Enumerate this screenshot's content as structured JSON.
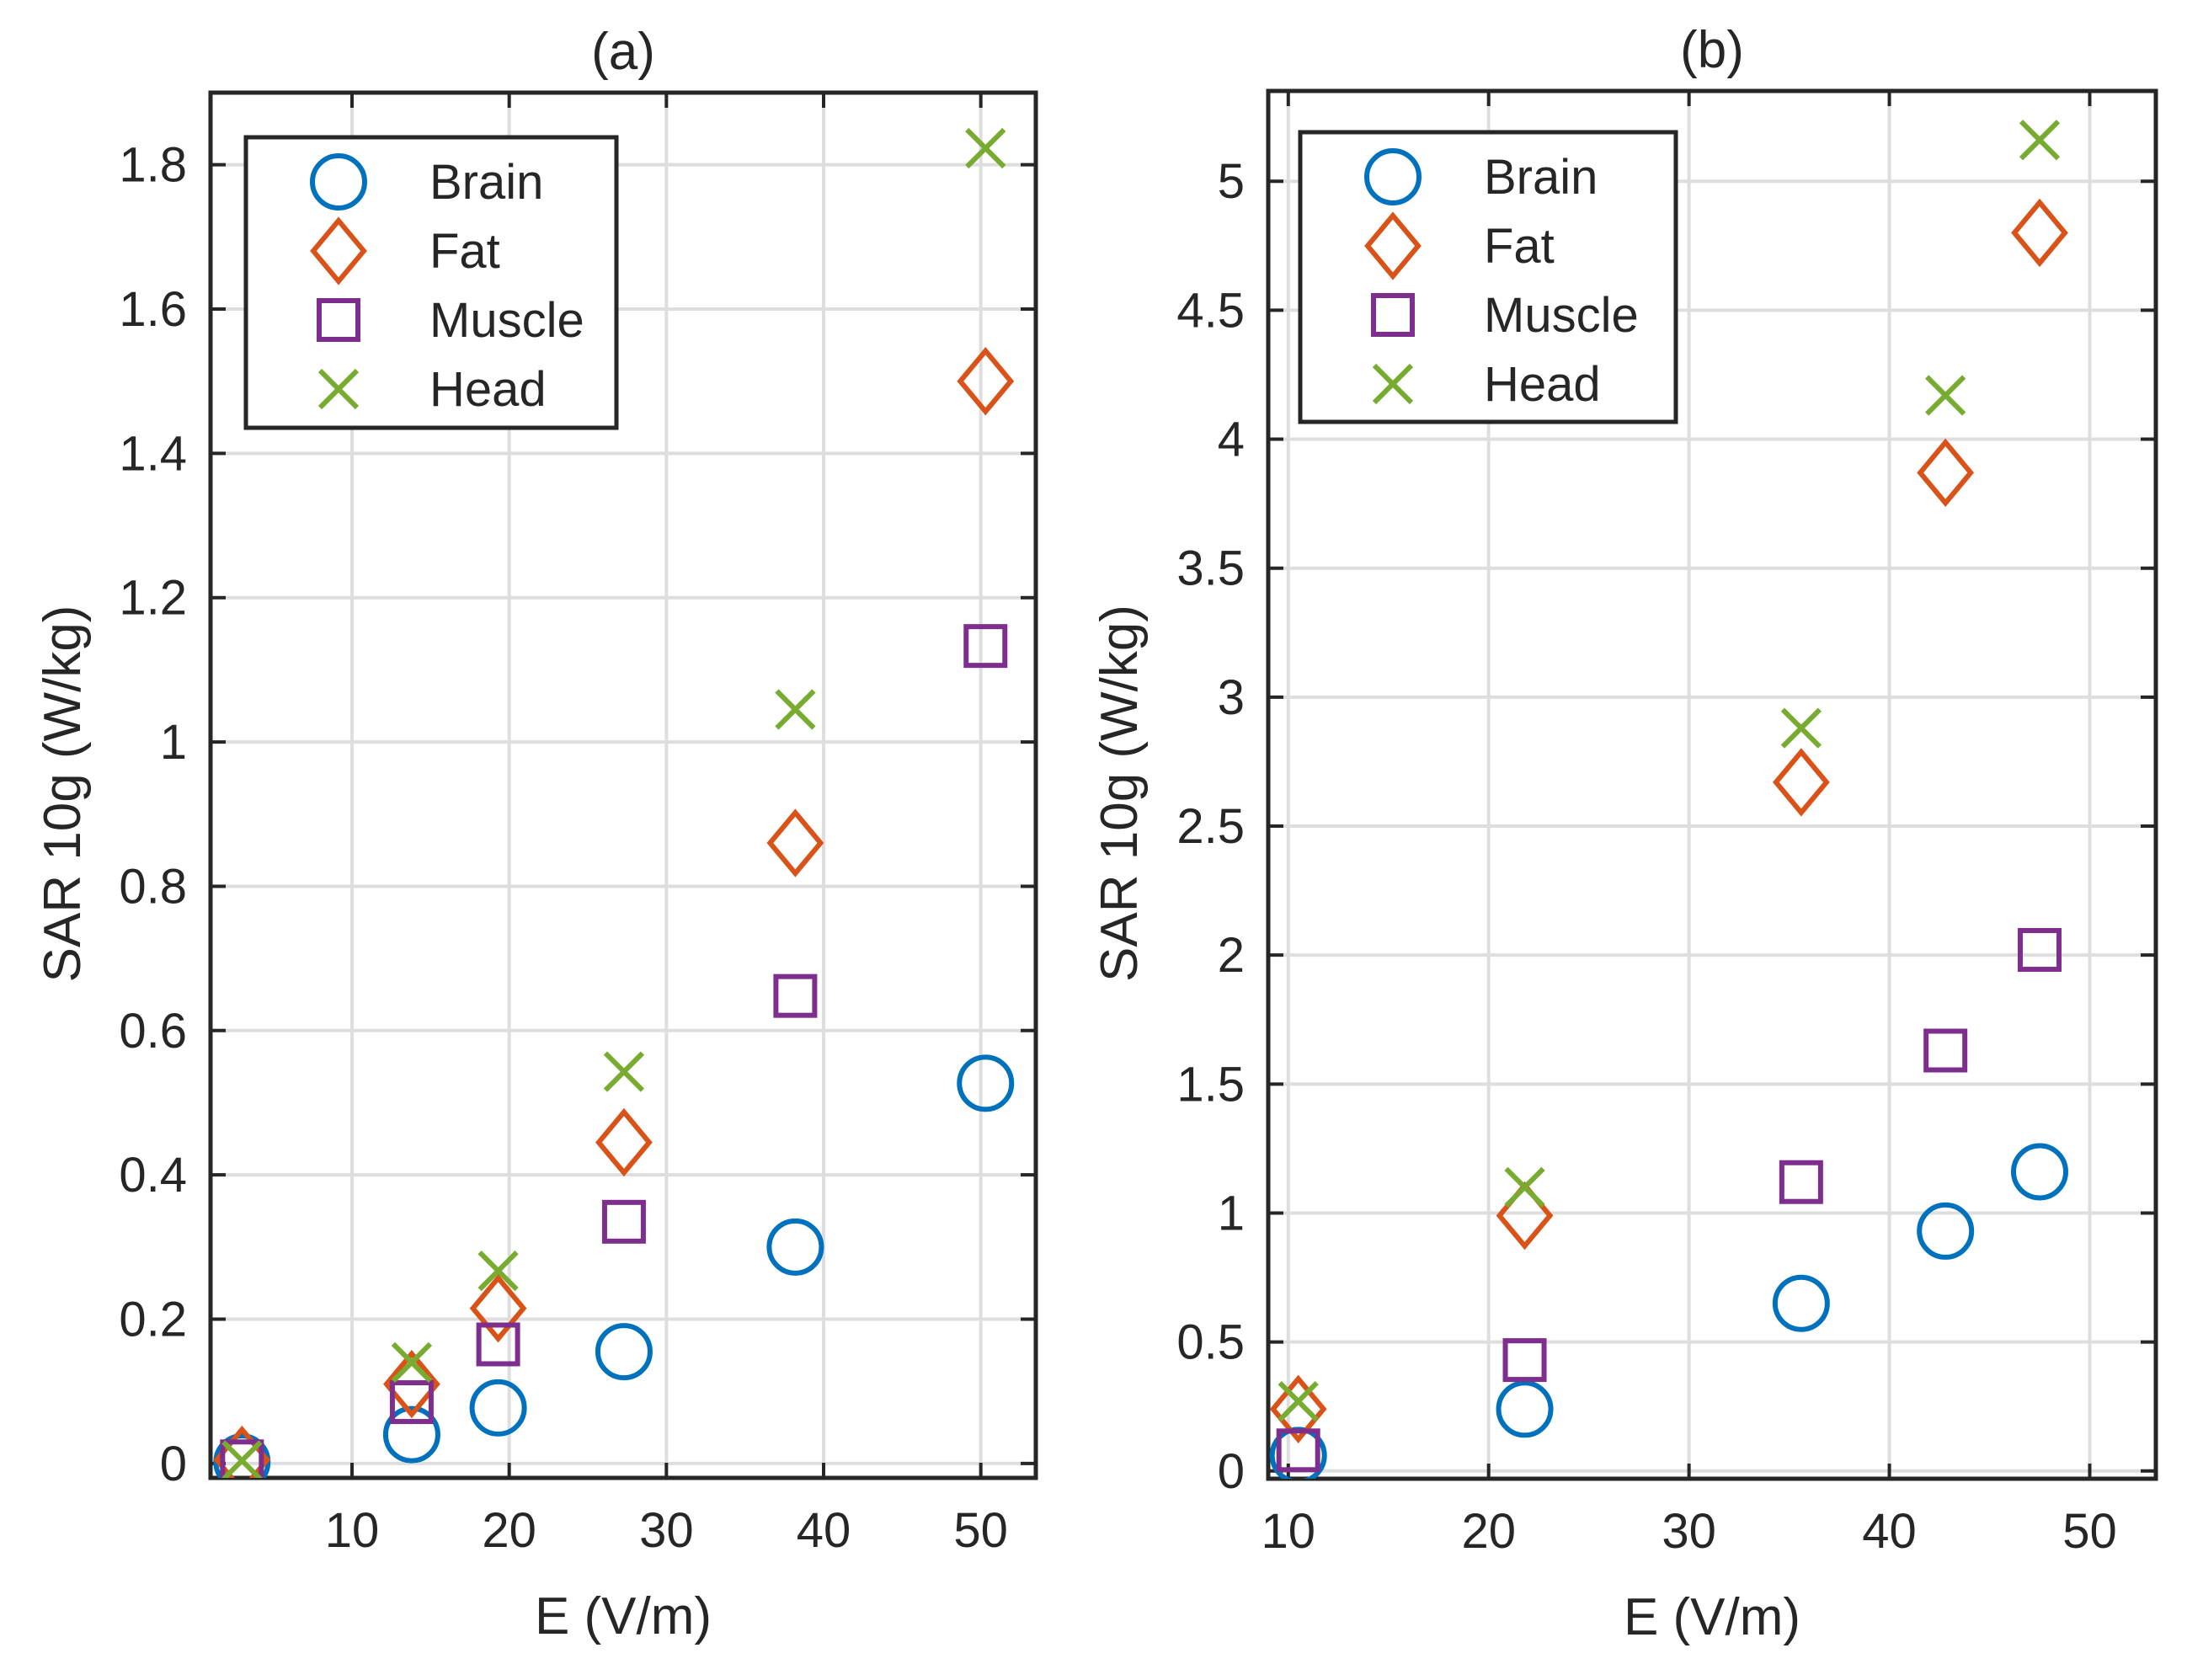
{
  "chart_data": [
    {
      "type": "scatter",
      "title": "(a)",
      "xlabel": "E (V/m)",
      "ylabel": "SAR 10g (W/kg)",
      "xlim": [
        1,
        53.5
      ],
      "ylim": [
        -0.02,
        1.9
      ],
      "xticks": [
        10,
        20,
        30,
        40,
        50
      ],
      "xtick_labels": [
        "10",
        "20",
        "30",
        "40",
        "50"
      ],
      "yticks": [
        0,
        0.2,
        0.4,
        0.6,
        0.8,
        1,
        1.2,
        1.4,
        1.6,
        1.8
      ],
      "ytick_labels": [
        "0",
        "0.2",
        "0.4",
        "0.6",
        "0.8",
        "1",
        "1.2",
        "1.4",
        "1.6",
        "1.8"
      ],
      "grid": true,
      "legend_position": "top-left",
      "series": [
        {
          "name": "Brain",
          "marker": "circle",
          "color": "#0072BD",
          "points": [
            [
              3,
              0.002
            ],
            [
              13.8,
              0.04
            ],
            [
              19.3,
              0.077
            ],
            [
              27.3,
              0.155
            ],
            [
              38.2,
              0.3
            ],
            [
              50.3,
              0.527
            ]
          ]
        },
        {
          "name": "Fat",
          "marker": "diamond",
          "color": "#D95319",
          "points": [
            [
              3,
              0.005
            ],
            [
              13.8,
              0.11
            ],
            [
              19.3,
              0.215
            ],
            [
              27.3,
              0.445
            ],
            [
              38.2,
              0.86
            ],
            [
              50.3,
              1.5
            ]
          ]
        },
        {
          "name": "Muscle",
          "marker": "square",
          "color": "#7E2F8E",
          "points": [
            [
              3,
              0.003
            ],
            [
              13.8,
              0.085
            ],
            [
              19.3,
              0.165
            ],
            [
              27.3,
              0.335
            ],
            [
              38.2,
              0.648
            ],
            [
              50.3,
              1.133
            ]
          ]
        },
        {
          "name": "Head",
          "marker": "x",
          "color": "#77AC30",
          "points": [
            [
              3,
              0.004
            ],
            [
              13.8,
              0.14
            ],
            [
              19.3,
              0.267
            ],
            [
              27.3,
              0.543
            ],
            [
              38.2,
              1.045
            ],
            [
              50.3,
              1.823
            ]
          ]
        }
      ]
    },
    {
      "type": "scatter",
      "title": "(b)",
      "xlabel": "E (V/m)",
      "ylabel": "SAR 10g (W/kg)",
      "xlim": [
        9,
        53.3
      ],
      "ylim": [
        -0.03,
        5.35
      ],
      "xticks": [
        10,
        20,
        30,
        40,
        50
      ],
      "xtick_labels": [
        "10",
        "20",
        "30",
        "40",
        "50"
      ],
      "yticks": [
        0,
        0.5,
        1,
        1.5,
        2,
        2.5,
        3,
        3.5,
        4,
        4.5,
        5
      ],
      "ytick_labels": [
        "0",
        "0.5",
        "1",
        "1.5",
        "2",
        "2.5",
        "3",
        "3.5",
        "4",
        "4.5",
        "5"
      ],
      "grid": true,
      "legend_position": "top-left",
      "series": [
        {
          "name": "Brain",
          "marker": "circle",
          "color": "#0072BD",
          "points": [
            [
              10.5,
              0.06
            ],
            [
              21.8,
              0.24
            ],
            [
              35.6,
              0.65
            ],
            [
              42.8,
              0.93
            ],
            [
              47.5,
              1.16
            ]
          ]
        },
        {
          "name": "Fat",
          "marker": "diamond",
          "color": "#D95319",
          "points": [
            [
              10.5,
              0.24
            ],
            [
              21.8,
              0.99
            ],
            [
              35.6,
              2.67
            ],
            [
              42.8,
              3.87
            ],
            [
              47.5,
              4.8
            ]
          ]
        },
        {
          "name": "Muscle",
          "marker": "square",
          "color": "#7E2F8E",
          "points": [
            [
              10.5,
              0.08
            ],
            [
              21.8,
              0.43
            ],
            [
              35.6,
              1.12
            ],
            [
              42.8,
              1.63
            ],
            [
              47.5,
              2.02
            ]
          ]
        },
        {
          "name": "Head",
          "marker": "x",
          "color": "#77AC30",
          "points": [
            [
              10.5,
              0.27
            ],
            [
              21.8,
              1.1
            ],
            [
              35.6,
              2.88
            ],
            [
              42.8,
              4.17
            ],
            [
              47.5,
              5.16
            ]
          ]
        }
      ]
    }
  ]
}
